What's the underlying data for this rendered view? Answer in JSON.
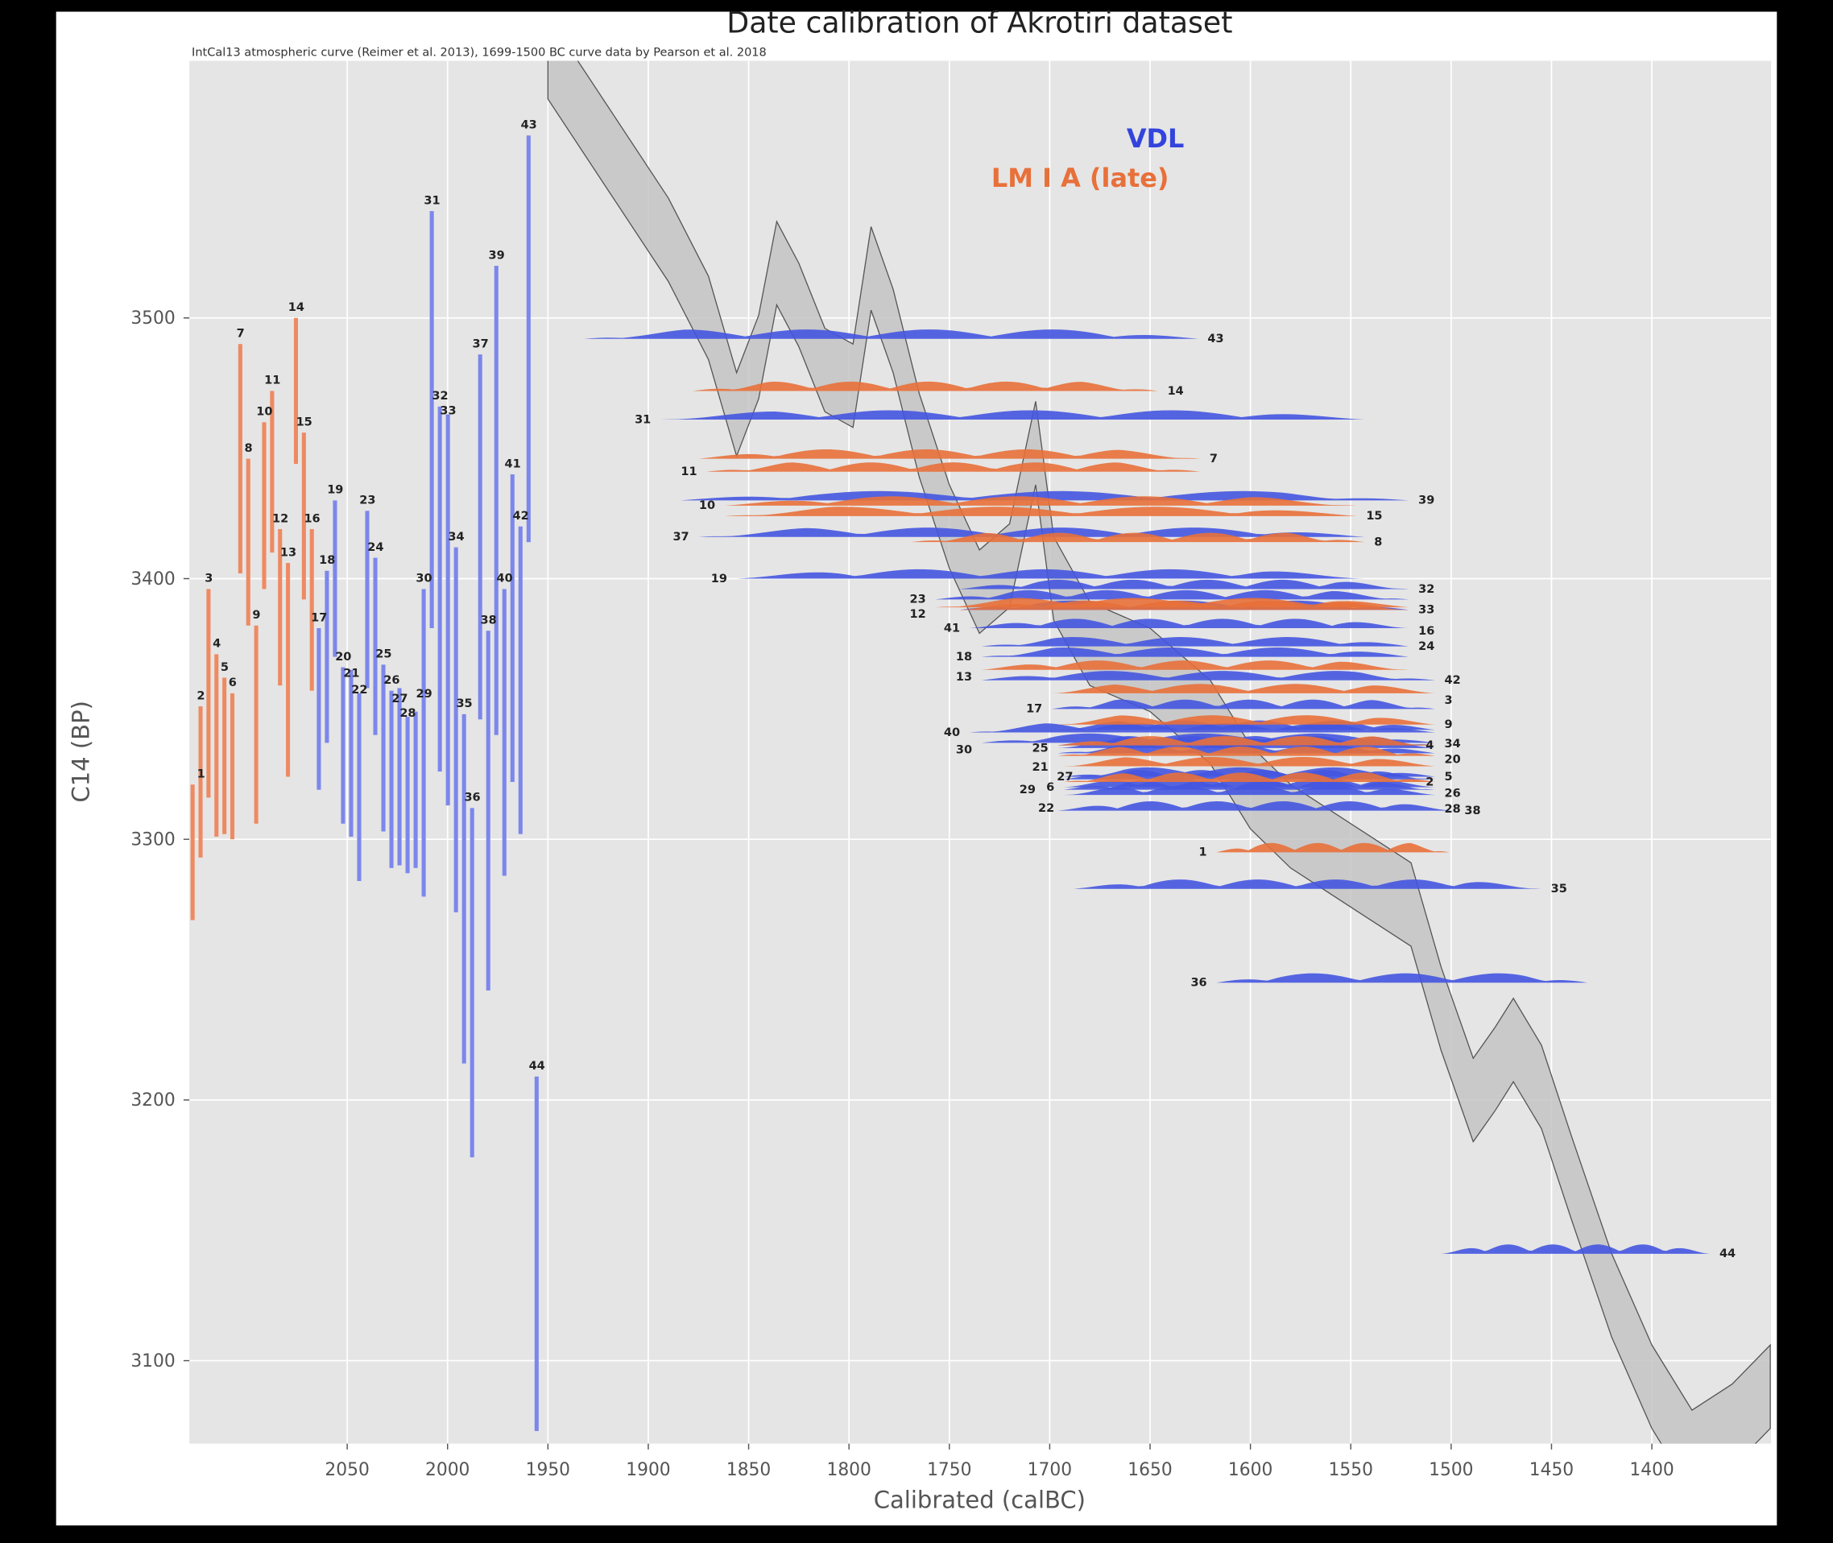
{
  "chart_data": {
    "type": "scatter",
    "title": "Date calibration of Akrotiri dataset",
    "subtitle": "IntCal13 atmospheric curve (Reimer et al. 2013), 1699-1500 BC curve data by Pearson et al. 2018",
    "xlabel": "Calibrated (calBC)",
    "ylabel": "C14 (BP)",
    "xlim": [
      2129,
      1341
    ],
    "ylim": [
      3068,
      3599
    ],
    "x_reversed": true,
    "xticks": [
      2050,
      2000,
      1950,
      1900,
      1850,
      1800,
      1750,
      1700,
      1650,
      1600,
      1550,
      1500,
      1450,
      1400
    ],
    "yticks": [
      3100,
      3200,
      3300,
      3400,
      3500
    ],
    "grid": true,
    "legend_placement": "top-right",
    "colors": {
      "VDL": "#3344dd",
      "LM I A (late)": "#e8703a",
      "curve": "#c4c4c4",
      "background": "#e5e5e5"
    },
    "series": [
      {
        "name": "VDL",
        "color": "#3344dd",
        "samples": [
          {
            "id": "17",
            "c14": 3350,
            "err": 31,
            "cal": [
              1699,
              1508
            ]
          },
          {
            "id": "18",
            "c14": 3370,
            "err": 33,
            "cal": [
              1734,
              1521
            ]
          },
          {
            "id": "19",
            "c14": 3400,
            "err": 30,
            "cal": [
              1856,
              1543
            ]
          },
          {
            "id": "20",
            "c14": 3336,
            "err": 30,
            "cal": [
              1696,
              1508
            ]
          },
          {
            "id": "21",
            "c14": 3333,
            "err": 32,
            "cal": [
              1696,
              1508
            ]
          },
          {
            "id": "22",
            "c14": 3320,
            "err": 36,
            "cal": [
              1693,
              1508
            ]
          },
          {
            "id": "23",
            "c14": 3392,
            "err": 34,
            "cal": [
              1757,
              1521
            ]
          },
          {
            "id": "24",
            "c14": 3374,
            "err": 34,
            "cal": [
              1734,
              1521
            ]
          },
          {
            "id": "25",
            "c14": 3335,
            "err": 32,
            "cal": [
              1696,
              1508
            ]
          },
          {
            "id": "26",
            "c14": 3323,
            "err": 34,
            "cal": [
              1693,
              1508
            ]
          },
          {
            "id": "27",
            "c14": 3324,
            "err": 34,
            "cal": [
              1693,
              1508
            ]
          },
          {
            "id": "28",
            "c14": 3317,
            "err": 30,
            "cal": [
              1693,
              1508
            ]
          },
          {
            "id": "29",
            "c14": 3319,
            "err": 30,
            "cal": [
              1693,
              1508
            ]
          },
          {
            "id": "30",
            "c14": 3337,
            "err": 59,
            "cal": [
              1734,
              1508
            ]
          },
          {
            "id": "31",
            "c14": 3461,
            "err": 80,
            "cal": [
              1894,
              1543
            ]
          },
          {
            "id": "32",
            "c14": 3396,
            "err": 70,
            "cal": [
              1745,
              1521
            ]
          },
          {
            "id": "33",
            "c14": 3388,
            "err": 75,
            "cal": [
              1745,
              1521
            ]
          },
          {
            "id": "34",
            "c14": 3342,
            "err": 70,
            "cal": [
              1696,
              1508
            ]
          },
          {
            "id": "35",
            "c14": 3281,
            "err": 67,
            "cal": [
              1688,
              1455
            ]
          },
          {
            "id": "36",
            "c14": 3245,
            "err": 67,
            "cal": [
              1617,
              1432
            ]
          },
          {
            "id": "37",
            "c14": 3416,
            "err": 70,
            "cal": [
              1875,
              1543
            ]
          },
          {
            "id": "38",
            "c14": 3311,
            "err": 69,
            "cal": [
              1696,
              1498
            ]
          },
          {
            "id": "39",
            "c14": 3430,
            "err": 90,
            "cal": [
              1884,
              1521
            ]
          },
          {
            "id": "40",
            "c14": 3341,
            "err": 55,
            "cal": [
              1740,
              1508
            ]
          },
          {
            "id": "41",
            "c14": 3381,
            "err": 59,
            "cal": [
              1740,
              1521
            ]
          },
          {
            "id": "42",
            "c14": 3361,
            "err": 59,
            "cal": [
              1734,
              1508
            ]
          },
          {
            "id": "43",
            "c14": 3492,
            "err": 78,
            "cal": [
              1932,
              1626
            ]
          },
          {
            "id": "44",
            "c14": 3141,
            "err": 68,
            "cal": [
              1505,
              1371
            ]
          }
        ]
      },
      {
        "name": "LM I A (late)",
        "color": "#e8703a",
        "samples": [
          {
            "id": "1",
            "c14": 3295,
            "err": 26,
            "cal": [
              1617,
              1501
            ]
          },
          {
            "id": "2",
            "c14": 3322,
            "err": 29,
            "cal": [
              1693,
              1508
            ]
          },
          {
            "id": "3",
            "c14": 3356,
            "err": 40,
            "cal": [
              1699,
              1508
            ]
          },
          {
            "id": "4",
            "c14": 3336,
            "err": 35,
            "cal": [
              1696,
              1508
            ]
          },
          {
            "id": "5",
            "c14": 3332,
            "err": 30,
            "cal": [
              1696,
              1508
            ]
          },
          {
            "id": "6",
            "c14": 3328,
            "err": 28,
            "cal": [
              1693,
              1508
            ]
          },
          {
            "id": "7",
            "c14": 3446,
            "err": 44,
            "cal": [
              1875,
              1625
            ]
          },
          {
            "id": "8",
            "c14": 3414,
            "err": 32,
            "cal": [
              1769,
              1543
            ]
          },
          {
            "id": "9",
            "c14": 3344,
            "err": 38,
            "cal": [
              1696,
              1508
            ]
          },
          {
            "id": "10",
            "c14": 3428,
            "err": 32,
            "cal": [
              1862,
              1547
            ]
          },
          {
            "id": "11",
            "c14": 3441,
            "err": 31,
            "cal": [
              1871,
              1625
            ]
          },
          {
            "id": "12",
            "c14": 3389,
            "err": 30,
            "cal": [
              1757,
              1521
            ]
          },
          {
            "id": "13",
            "c14": 3365,
            "err": 41,
            "cal": [
              1734,
              1521
            ]
          },
          {
            "id": "14",
            "c14": 3472,
            "err": 28,
            "cal": [
              1878,
              1646
            ]
          },
          {
            "id": "15",
            "c14": 3424,
            "err": 32,
            "cal": [
              1862,
              1547
            ]
          },
          {
            "id": "16",
            "c14": 3388,
            "err": 31,
            "cal": [
              1745,
              1521
            ]
          }
        ]
      }
    ],
    "calibration_curve": {
      "name": "IntCal13",
      "cal": [
        1950,
        1920,
        1890,
        1870,
        1856,
        1845,
        1836,
        1825,
        1812,
        1798,
        1789,
        1778,
        1765,
        1750,
        1735,
        1720,
        1707,
        1698,
        1680,
        1650,
        1620,
        1600,
        1580,
        1560,
        1540,
        1520,
        1505,
        1489,
        1478,
        1469,
        1455,
        1440,
        1420,
        1400,
        1380,
        1360,
        1341
      ],
      "c14": [
        3600,
        3565,
        3530,
        3500,
        3463,
        3485,
        3521,
        3505,
        3480,
        3474,
        3519,
        3495,
        3455,
        3420,
        3395,
        3405,
        3452,
        3400,
        3375,
        3365,
        3345,
        3320,
        3305,
        3295,
        3285,
        3275,
        3235,
        3200,
        3212,
        3223,
        3205,
        3170,
        3125,
        3090,
        3065,
        3075,
        3090
      ]
    }
  }
}
